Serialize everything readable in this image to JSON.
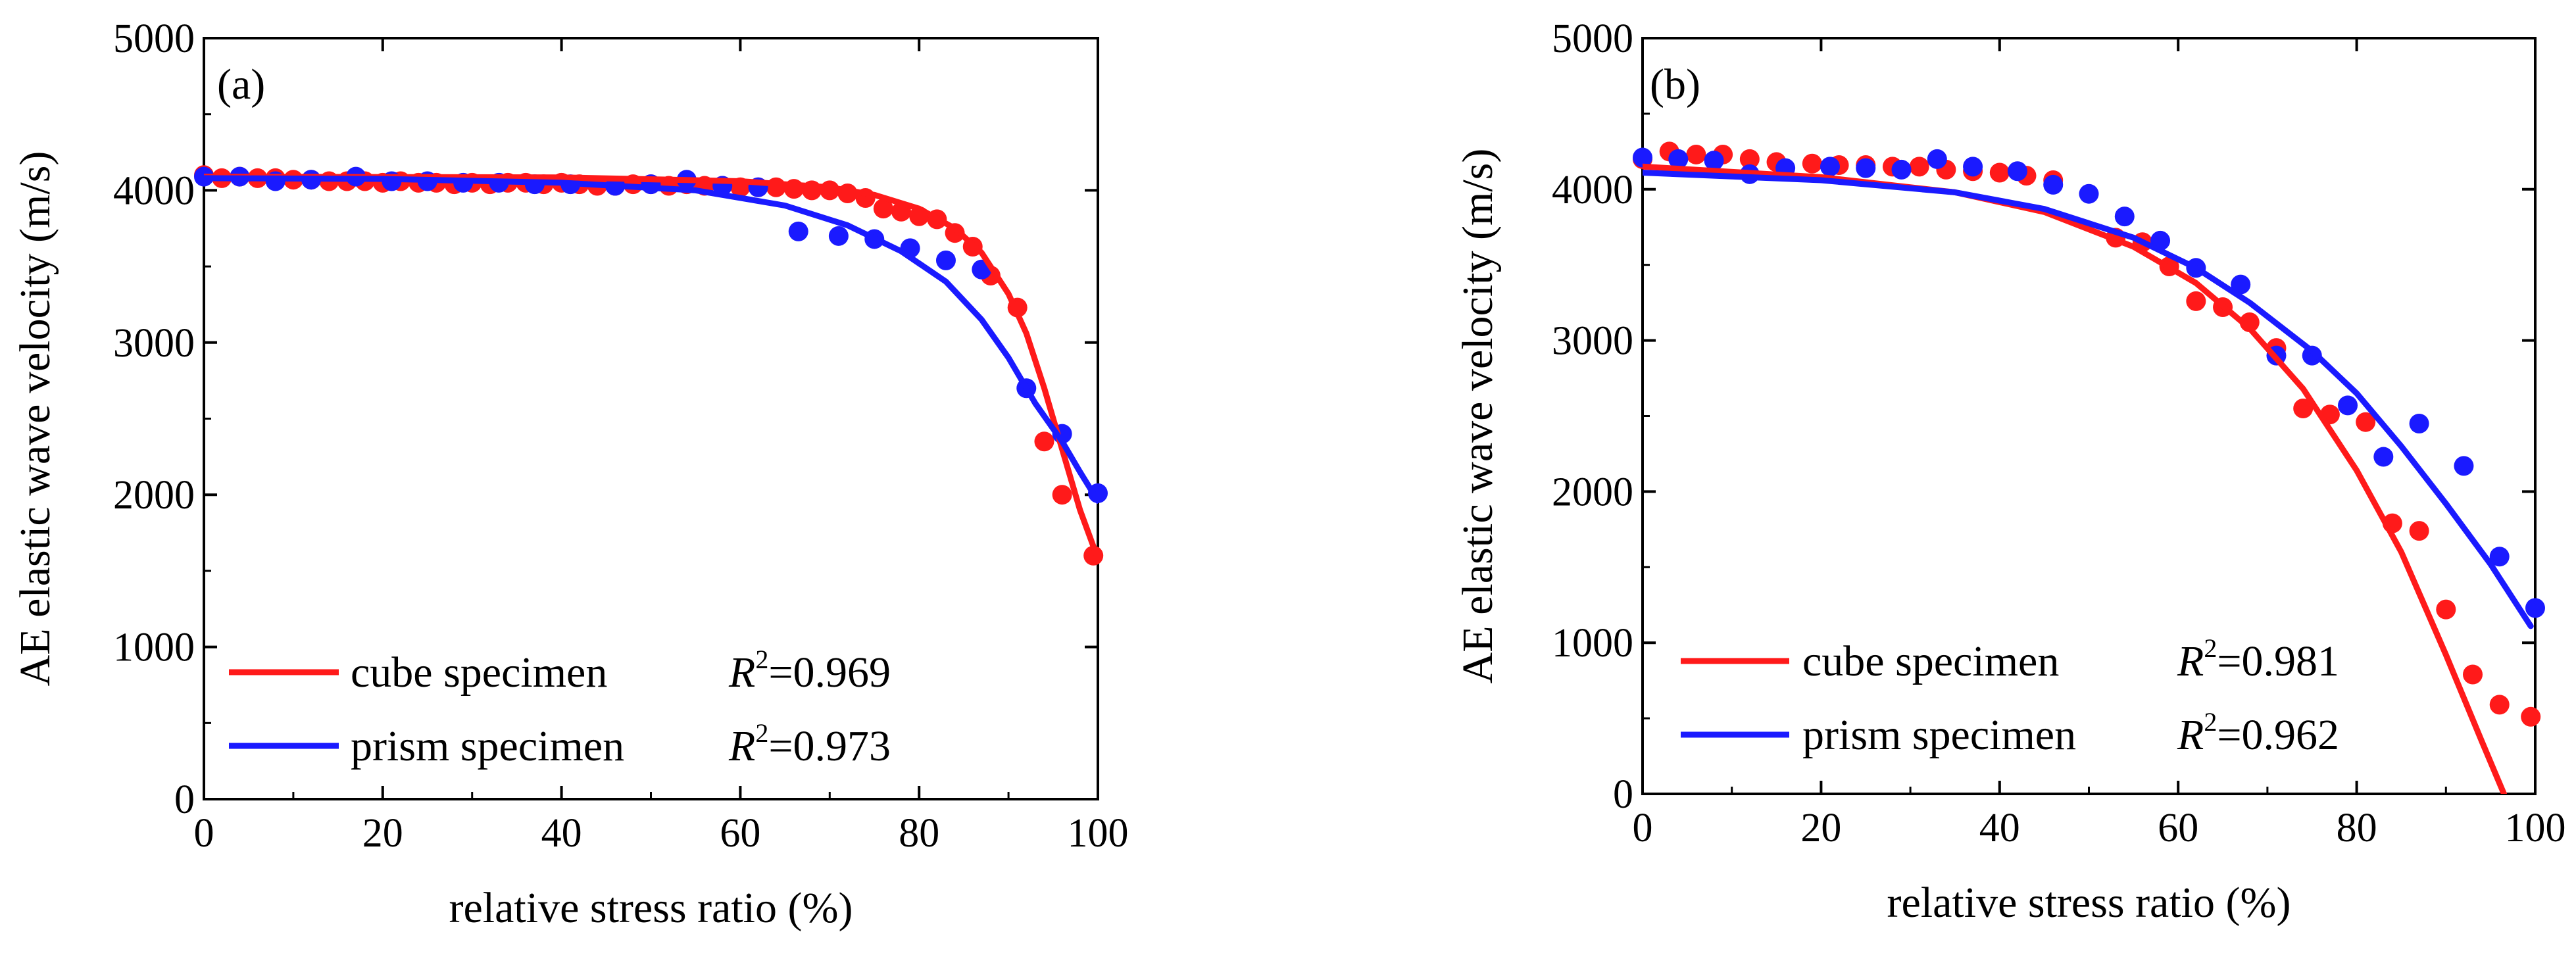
{
  "chart_data": [
    {
      "type": "scatter",
      "panel_label": "(a)",
      "xlabel": "relative stress ratio (%)",
      "ylabel": "AE elastic wave velocity (m/s)",
      "xlim": [
        0,
        100
      ],
      "ylim": [
        0,
        5000
      ],
      "xticks": [
        0,
        20,
        40,
        60,
        80,
        100
      ],
      "yticks": [
        0,
        1000,
        2000,
        3000,
        4000,
        5000
      ],
      "grid": false,
      "legend_position": "bottom-left",
      "series": [
        {
          "name": "cube specimen",
          "r2_label": "=0.969",
          "color": "#ff1a1a",
          "points": [
            [
              0,
              4100
            ],
            [
              2,
              4080
            ],
            [
              4,
              4090
            ],
            [
              6,
              4080
            ],
            [
              8,
              4080
            ],
            [
              10,
              4070
            ],
            [
              12,
              4070
            ],
            [
              14,
              4060
            ],
            [
              16,
              4060
            ],
            [
              18,
              4060
            ],
            [
              20,
              4050
            ],
            [
              22,
              4060
            ],
            [
              24,
              4050
            ],
            [
              26,
              4050
            ],
            [
              28,
              4040
            ],
            [
              30,
              4050
            ],
            [
              32,
              4040
            ],
            [
              34,
              4050
            ],
            [
              36,
              4050
            ],
            [
              38,
              4040
            ],
            [
              40,
              4050
            ],
            [
              42,
              4040
            ],
            [
              44,
              4030
            ],
            [
              46,
              4030
            ],
            [
              48,
              4040
            ],
            [
              50,
              4040
            ],
            [
              52,
              4030
            ],
            [
              54,
              4040
            ],
            [
              56,
              4030
            ],
            [
              58,
              4030
            ],
            [
              60,
              4020
            ],
            [
              62,
              4020
            ],
            [
              64,
              4020
            ],
            [
              66,
              4010
            ],
            [
              68,
              4000
            ],
            [
              70,
              4000
            ],
            [
              72,
              3980
            ],
            [
              74,
              3950
            ],
            [
              76,
              3880
            ],
            [
              78,
              3860
            ],
            [
              80,
              3830
            ],
            [
              82,
              3810
            ],
            [
              84,
              3720
            ],
            [
              86,
              3630
            ],
            [
              88,
              3440
            ],
            [
              91,
              3230
            ],
            [
              94,
              2350
            ],
            [
              96,
              2000
            ],
            [
              99.5,
              1600
            ]
          ],
          "fit": [
            [
              0,
              4090
            ],
            [
              40,
              4085
            ],
            [
              60,
              4060
            ],
            [
              70,
              4020
            ],
            [
              75,
              3970
            ],
            [
              80,
              3880
            ],
            [
              84,
              3750
            ],
            [
              87,
              3590
            ],
            [
              90,
              3320
            ],
            [
              92,
              3060
            ],
            [
              94,
              2700
            ],
            [
              96,
              2300
            ],
            [
              98,
              1900
            ],
            [
              100,
              1580
            ]
          ]
        },
        {
          "name": "prism specimen",
          "r2_label": "=0.973",
          "color": "#1a1aff",
          "points": [
            [
              0,
              4090
            ],
            [
              4,
              4090
            ],
            [
              8,
              4060
            ],
            [
              12,
              4070
            ],
            [
              17,
              4090
            ],
            [
              21,
              4060
            ],
            [
              25,
              4060
            ],
            [
              29,
              4050
            ],
            [
              33,
              4050
            ],
            [
              37,
              4040
            ],
            [
              41,
              4040
            ],
            [
              46,
              4030
            ],
            [
              50,
              4040
            ],
            [
              54,
              4070
            ],
            [
              58,
              4030
            ],
            [
              62,
              4020
            ],
            [
              66.5,
              3730
            ],
            [
              71,
              3700
            ],
            [
              75,
              3680
            ],
            [
              79,
              3620
            ],
            [
              83,
              3540
            ],
            [
              87,
              3480
            ],
            [
              92,
              2700
            ],
            [
              96,
              2400
            ],
            [
              100,
              2010
            ]
          ],
          "fit": [
            [
              0,
              4080
            ],
            [
              20,
              4075
            ],
            [
              40,
              4050
            ],
            [
              55,
              4000
            ],
            [
              65,
              3900
            ],
            [
              72,
              3770
            ],
            [
              78,
              3600
            ],
            [
              83,
              3400
            ],
            [
              87,
              3150
            ],
            [
              90,
              2900
            ],
            [
              93,
              2600
            ],
            [
              96,
              2350
            ],
            [
              98,
              2150
            ],
            [
              100,
              1960
            ]
          ]
        }
      ]
    },
    {
      "type": "scatter",
      "panel_label": "(b)",
      "xlabel": "relative stress ratio (%)",
      "ylabel": "AE elastic wave velocity (m/s)",
      "xlim": [
        0,
        100
      ],
      "ylim": [
        0,
        5000
      ],
      "xticks": [
        0,
        20,
        40,
        60,
        80,
        100
      ],
      "yticks": [
        0,
        1000,
        2000,
        3000,
        4000,
        5000
      ],
      "grid": false,
      "legend_position": "bottom-left",
      "series": [
        {
          "name": "cube specimen",
          "r2_label": "=0.981",
          "color": "#ff1a1a",
          "points": [
            [
              0,
              4200
            ],
            [
              3,
              4250
            ],
            [
              6,
              4230
            ],
            [
              9,
              4230
            ],
            [
              12,
              4200
            ],
            [
              15,
              4180
            ],
            [
              19,
              4170
            ],
            [
              22,
              4160
            ],
            [
              25,
              4160
            ],
            [
              28,
              4150
            ],
            [
              31,
              4150
            ],
            [
              34,
              4130
            ],
            [
              37,
              4120
            ],
            [
              40,
              4110
            ],
            [
              43,
              4090
            ],
            [
              46,
              4060
            ],
            [
              53,
              3680
            ],
            [
              56,
              3650
            ],
            [
              59,
              3490
            ],
            [
              62,
              3260
            ],
            [
              65,
              3220
            ],
            [
              68,
              3120
            ],
            [
              71,
              2950
            ],
            [
              74,
              2550
            ],
            [
              77,
              2510
            ],
            [
              81,
              2460
            ],
            [
              84,
              1790
            ],
            [
              87,
              1740
            ],
            [
              90,
              1220
            ],
            [
              93,
              790
            ],
            [
              96,
              590
            ],
            [
              99.5,
              510
            ]
          ],
          "fit": [
            [
              0,
              4150
            ],
            [
              20,
              4080
            ],
            [
              35,
              3980
            ],
            [
              45,
              3850
            ],
            [
              55,
              3620
            ],
            [
              62,
              3380
            ],
            [
              68,
              3080
            ],
            [
              74,
              2680
            ],
            [
              80,
              2140
            ],
            [
              85,
              1600
            ],
            [
              90,
              920
            ],
            [
              94,
              350
            ],
            [
              96.5,
              0
            ]
          ]
        },
        {
          "name": "prism specimen",
          "r2_label": "=0.962",
          "color": "#1a1aff",
          "points": [
            [
              0,
              4210
            ],
            [
              4,
              4200
            ],
            [
              8,
              4190
            ],
            [
              12,
              4100
            ],
            [
              16,
              4140
            ],
            [
              21,
              4150
            ],
            [
              25,
              4140
            ],
            [
              29,
              4130
            ],
            [
              33,
              4200
            ],
            [
              37,
              4150
            ],
            [
              42,
              4120
            ],
            [
              46,
              4030
            ],
            [
              50,
              3970
            ],
            [
              54,
              3820
            ],
            [
              58,
              3660
            ],
            [
              62,
              3480
            ],
            [
              67,
              3370
            ],
            [
              71,
              2900
            ],
            [
              75,
              2900
            ],
            [
              79,
              2570
            ],
            [
              83,
              2230
            ],
            [
              87,
              2450
            ],
            [
              92,
              2170
            ],
            [
              96,
              1570
            ],
            [
              100,
              1230
            ]
          ],
          "fit": [
            [
              0,
              4110
            ],
            [
              20,
              4060
            ],
            [
              35,
              3980
            ],
            [
              45,
              3870
            ],
            [
              55,
              3680
            ],
            [
              62,
              3480
            ],
            [
              68,
              3250
            ],
            [
              75,
              2930
            ],
            [
              80,
              2650
            ],
            [
              85,
              2300
            ],
            [
              90,
              1920
            ],
            [
              95,
              1520
            ],
            [
              99.5,
              1110
            ]
          ]
        }
      ]
    }
  ]
}
